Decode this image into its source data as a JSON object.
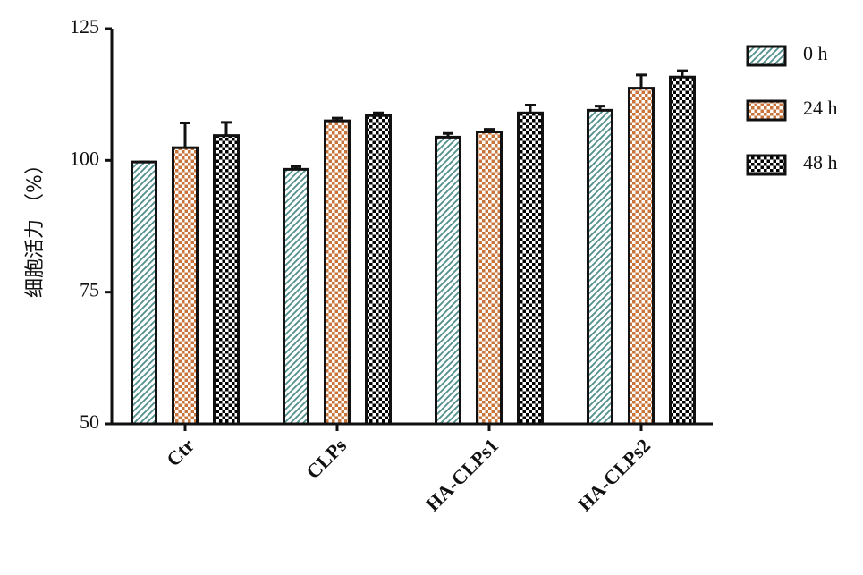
{
  "chart_data": {
    "type": "bar",
    "y_label": "细胞活力 （%）",
    "categories": [
      "Ctr",
      "CLPs",
      "HA-CLPs1",
      "HA-CLPs2"
    ],
    "series": [
      {
        "name": "0 h",
        "color": "#4f8f8c",
        "pattern": "hatch",
        "values": [
          99.7,
          98.3,
          104.4,
          109.5
        ],
        "errors": [
          0,
          0.5,
          0.7,
          0.8
        ]
      },
      {
        "name": "24 h",
        "color": "#c8743a",
        "pattern": "checker",
        "values": [
          102.4,
          107.5,
          105.4,
          113.7
        ],
        "errors": [
          4.7,
          0.5,
          0.5,
          2.5
        ]
      },
      {
        "name": "48 h",
        "color": "#000000",
        "pattern": "checker",
        "values": [
          104.7,
          108.5,
          109,
          115.8
        ],
        "errors": [
          2.5,
          0.5,
          1.5,
          1.2
        ]
      }
    ],
    "ylim": [
      50,
      125
    ],
    "yticks": [
      50,
      75,
      100,
      125
    ],
    "legend": "right"
  }
}
